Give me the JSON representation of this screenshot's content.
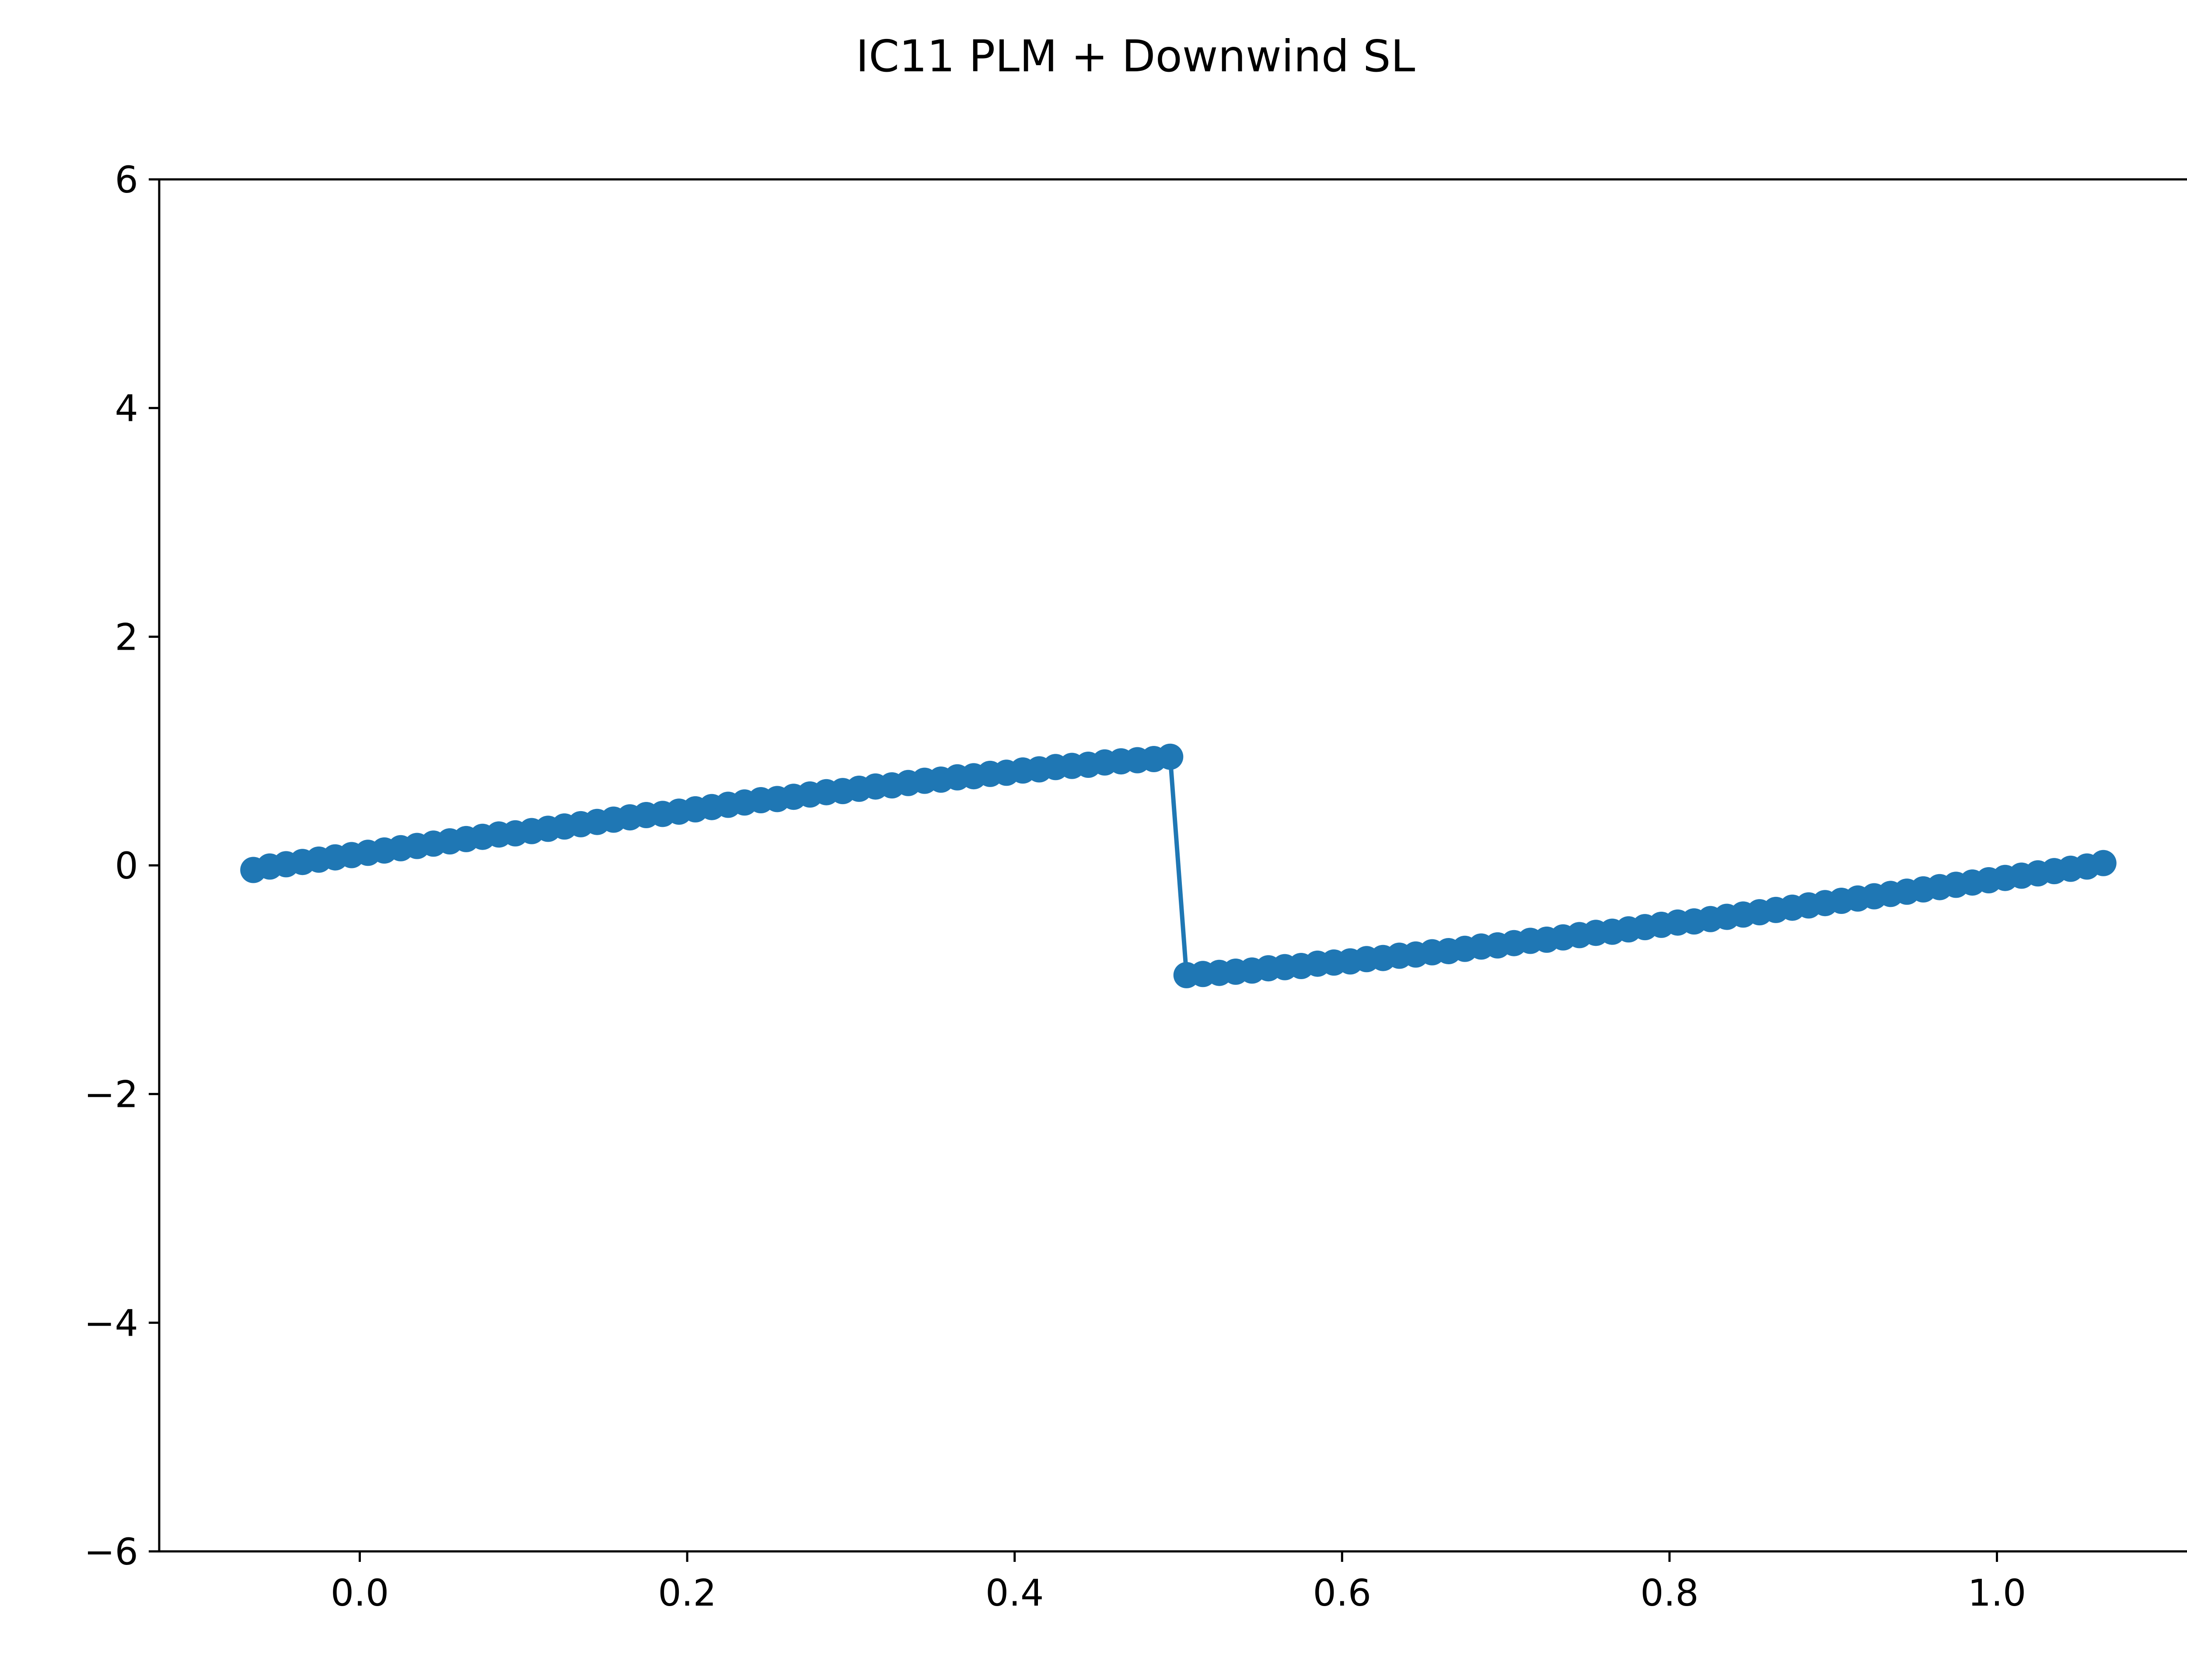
{
  "chart_data": {
    "type": "line",
    "title": "IC11 PLM + Downwind SL",
    "xlabel": "",
    "ylabel": "",
    "xlim": [
      -0.1225,
      1.1225
    ],
    "ylim": [
      -6,
      6
    ],
    "xticks": [
      0.0,
      0.2,
      0.4,
      0.6,
      0.8,
      1.0
    ],
    "xtick_labels": [
      "0.0",
      "0.2",
      "0.4",
      "0.6",
      "0.8",
      "1.0"
    ],
    "yticks": [
      -6,
      -4,
      -2,
      0,
      2,
      4,
      6
    ],
    "ytick_labels": [
      "−6",
      "−4",
      "−2",
      "0",
      "2",
      "4",
      "6"
    ],
    "grid": false,
    "legend": "none",
    "series": [
      {
        "color": "#1f77b4",
        "marker": "circle",
        "x": [
          -0.065,
          -0.055,
          -0.045,
          -0.035,
          -0.025,
          -0.015,
          -0.005,
          0.005,
          0.015,
          0.025,
          0.035,
          0.045,
          0.055,
          0.065,
          0.075,
          0.085,
          0.095,
          0.105,
          0.115,
          0.125,
          0.135,
          0.145,
          0.155,
          0.165,
          0.175,
          0.185,
          0.195,
          0.205,
          0.215,
          0.225,
          0.235,
          0.245,
          0.255,
          0.265,
          0.275,
          0.285,
          0.295,
          0.305,
          0.315,
          0.325,
          0.335,
          0.345,
          0.355,
          0.365,
          0.375,
          0.385,
          0.395,
          0.405,
          0.415,
          0.425,
          0.435,
          0.445,
          0.455,
          0.465,
          0.475,
          0.485,
          0.495,
          0.505,
          0.515,
          0.525,
          0.535,
          0.545,
          0.555,
          0.565,
          0.575,
          0.585,
          0.595,
          0.605,
          0.615,
          0.625,
          0.635,
          0.645,
          0.655,
          0.665,
          0.675,
          0.685,
          0.695,
          0.705,
          0.715,
          0.725,
          0.735,
          0.745,
          0.755,
          0.765,
          0.775,
          0.785,
          0.795,
          0.805,
          0.815,
          0.825,
          0.835,
          0.845,
          0.855,
          0.865,
          0.875,
          0.885,
          0.895,
          0.905,
          0.915,
          0.925,
          0.935,
          0.945,
          0.955,
          0.965,
          0.975,
          0.985,
          0.995,
          1.005,
          1.015,
          1.025,
          1.035,
          1.045,
          1.055,
          1.065
        ],
        "y": [
          -0.04,
          -0.01,
          0.01,
          0.03,
          0.05,
          0.07,
          0.09,
          0.11,
          0.13,
          0.15,
          0.17,
          0.19,
          0.21,
          0.23,
          0.25,
          0.27,
          0.28,
          0.3,
          0.32,
          0.34,
          0.36,
          0.38,
          0.4,
          0.42,
          0.44,
          0.45,
          0.47,
          0.49,
          0.51,
          0.53,
          0.55,
          0.57,
          0.58,
          0.6,
          0.62,
          0.64,
          0.65,
          0.67,
          0.69,
          0.7,
          0.72,
          0.74,
          0.75,
          0.77,
          0.78,
          0.8,
          0.81,
          0.83,
          0.84,
          0.86,
          0.87,
          0.88,
          0.9,
          0.91,
          0.92,
          0.93,
          0.95,
          -0.96,
          -0.95,
          -0.94,
          -0.93,
          -0.92,
          -0.9,
          -0.89,
          -0.88,
          -0.86,
          -0.85,
          -0.84,
          -0.82,
          -0.81,
          -0.79,
          -0.78,
          -0.76,
          -0.75,
          -0.73,
          -0.71,
          -0.7,
          -0.68,
          -0.66,
          -0.65,
          -0.63,
          -0.61,
          -0.59,
          -0.58,
          -0.56,
          -0.54,
          -0.52,
          -0.5,
          -0.49,
          -0.47,
          -0.45,
          -0.43,
          -0.41,
          -0.39,
          -0.37,
          -0.35,
          -0.33,
          -0.31,
          -0.29,
          -0.27,
          -0.25,
          -0.23,
          -0.21,
          -0.19,
          -0.17,
          -0.15,
          -0.13,
          -0.11,
          -0.09,
          -0.07,
          -0.05,
          -0.03,
          -0.01,
          0.02
        ]
      }
    ]
  }
}
